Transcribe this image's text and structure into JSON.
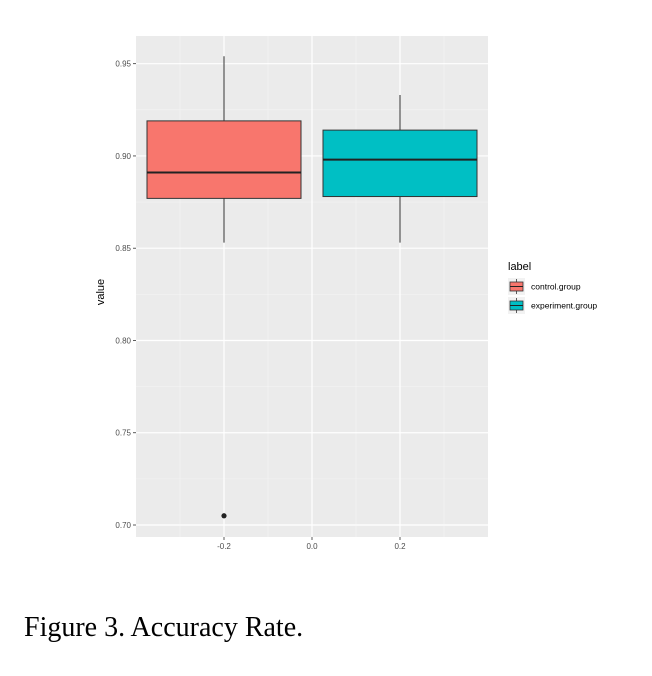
{
  "caption": "Figure 3. Accuracy Rate.",
  "chart_data": {
    "type": "box",
    "ylabel": "value",
    "xlabel": "",
    "xlim": [
      -0.4,
      0.4
    ],
    "ylim": [
      0.6935,
      0.965
    ],
    "x_ticks": [
      -0.2,
      0.0,
      0.2
    ],
    "x_tick_labels": [
      "-0.2",
      "0.0",
      "0.2"
    ],
    "y_ticks": [
      0.7,
      0.75,
      0.8,
      0.85,
      0.9,
      0.95
    ],
    "y_tick_labels": [
      "0.70",
      "0.75",
      "0.80",
      "0.85",
      "0.90",
      "0.95"
    ],
    "grid": true,
    "background": "#ebebeb",
    "legend": {
      "title": "label",
      "placement": "right",
      "entries": [
        "control.group",
        "experiment.group"
      ]
    },
    "series": [
      {
        "name": "control.group",
        "color": "#f8766d",
        "x_center": -0.2,
        "box_width": 0.35,
        "whisker_low": 0.853,
        "q1": 0.877,
        "median": 0.891,
        "q3": 0.919,
        "whisker_high": 0.954,
        "outliers": [
          0.705
        ]
      },
      {
        "name": "experiment.group",
        "color": "#00bfc4",
        "x_center": 0.2,
        "box_width": 0.35,
        "whisker_low": 0.853,
        "q1": 0.878,
        "median": 0.898,
        "q3": 0.914,
        "whisker_high": 0.933,
        "outliers": []
      }
    ]
  }
}
